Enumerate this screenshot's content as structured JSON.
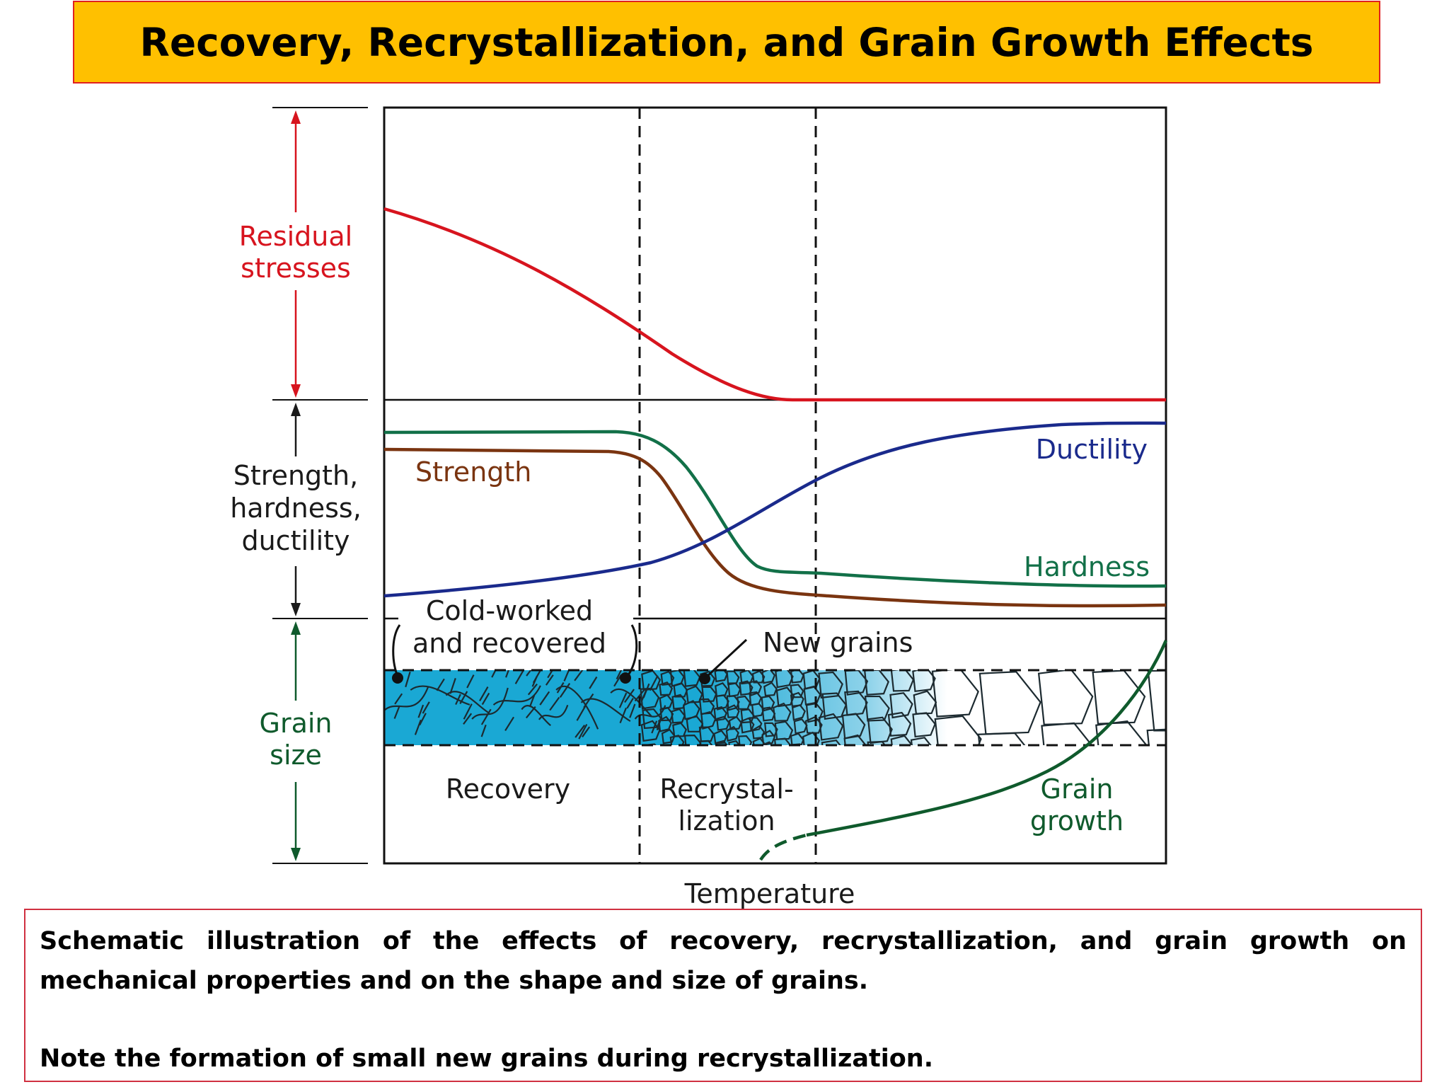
{
  "title": "Recovery, Recrystallization, and Grain Growth Effects",
  "diagram": {
    "x_axis_label": "Temperature",
    "left_labels": {
      "residual_stresses": [
        "Residual",
        "stresses"
      ],
      "strength_group": [
        "Strength,",
        "hardness,",
        "ductility"
      ],
      "grain_size": [
        "Grain",
        "size"
      ]
    },
    "curve_labels": {
      "strength": "Strength",
      "ductility": "Ductility",
      "hardness": "Hardness"
    },
    "grain_labels": {
      "cold_worked": [
        "Cold-worked",
        "and recovered"
      ],
      "new_grains": "New grains"
    },
    "region_labels": {
      "recovery": "Recovery",
      "recrystallization": [
        "Recrystal-",
        "lization"
      ],
      "grain_growth": [
        "Grain",
        "growth"
      ]
    },
    "colors": {
      "residual_stress": "#d7141e",
      "strength": "#7a3410",
      "hardness": "#127048",
      "ductility": "#1a2a8c",
      "grain_size": "#0f5a2c",
      "grain_fill": "#1aa8d4",
      "text": "#1a1a1a"
    }
  },
  "caption": {
    "main": "Schematic illustration of the effects of recovery, recrystallization, and grain growth on mechanical properties and on the shape and size of grains.",
    "note": "Note the formation of small new grains during recrystallization."
  }
}
